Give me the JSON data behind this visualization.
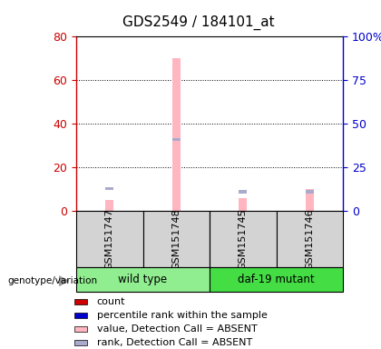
{
  "title": "GDS2549 / 184101_at",
  "samples": [
    "GSM151747",
    "GSM151748",
    "GSM151745",
    "GSM151746"
  ],
  "groups": [
    "wild type",
    "wild type",
    "daf-19 mutant",
    "daf-19 mutant"
  ],
  "value_absent": [
    5,
    70,
    6,
    10
  ],
  "rank_absent_pct": [
    13,
    41,
    11,
    11
  ],
  "ylim_left": [
    0,
    80
  ],
  "ylim_right": [
    0,
    100
  ],
  "left_ticks": [
    0,
    20,
    40,
    60,
    80
  ],
  "right_ticks": [
    0,
    25,
    50,
    75,
    100
  ],
  "left_tick_color": "#CC0000",
  "right_tick_color": "#0000CC",
  "color_value_absent": "#FFB6C1",
  "color_rank_absent": "#AAAACC",
  "color_count": "#CC0000",
  "color_percentile": "#0000CC",
  "legend_items": [
    {
      "label": "count",
      "color": "#CC0000"
    },
    {
      "label": "percentile rank within the sample",
      "color": "#0000CC"
    },
    {
      "label": "value, Detection Call = ABSENT",
      "color": "#FFB6C1"
    },
    {
      "label": "rank, Detection Call = ABSENT",
      "color": "#AAAACC"
    }
  ],
  "group_label": "genotype/variation",
  "wt_color": "#90EE90",
  "daf_color": "#44DD44",
  "background_color": "#FFFFFF"
}
